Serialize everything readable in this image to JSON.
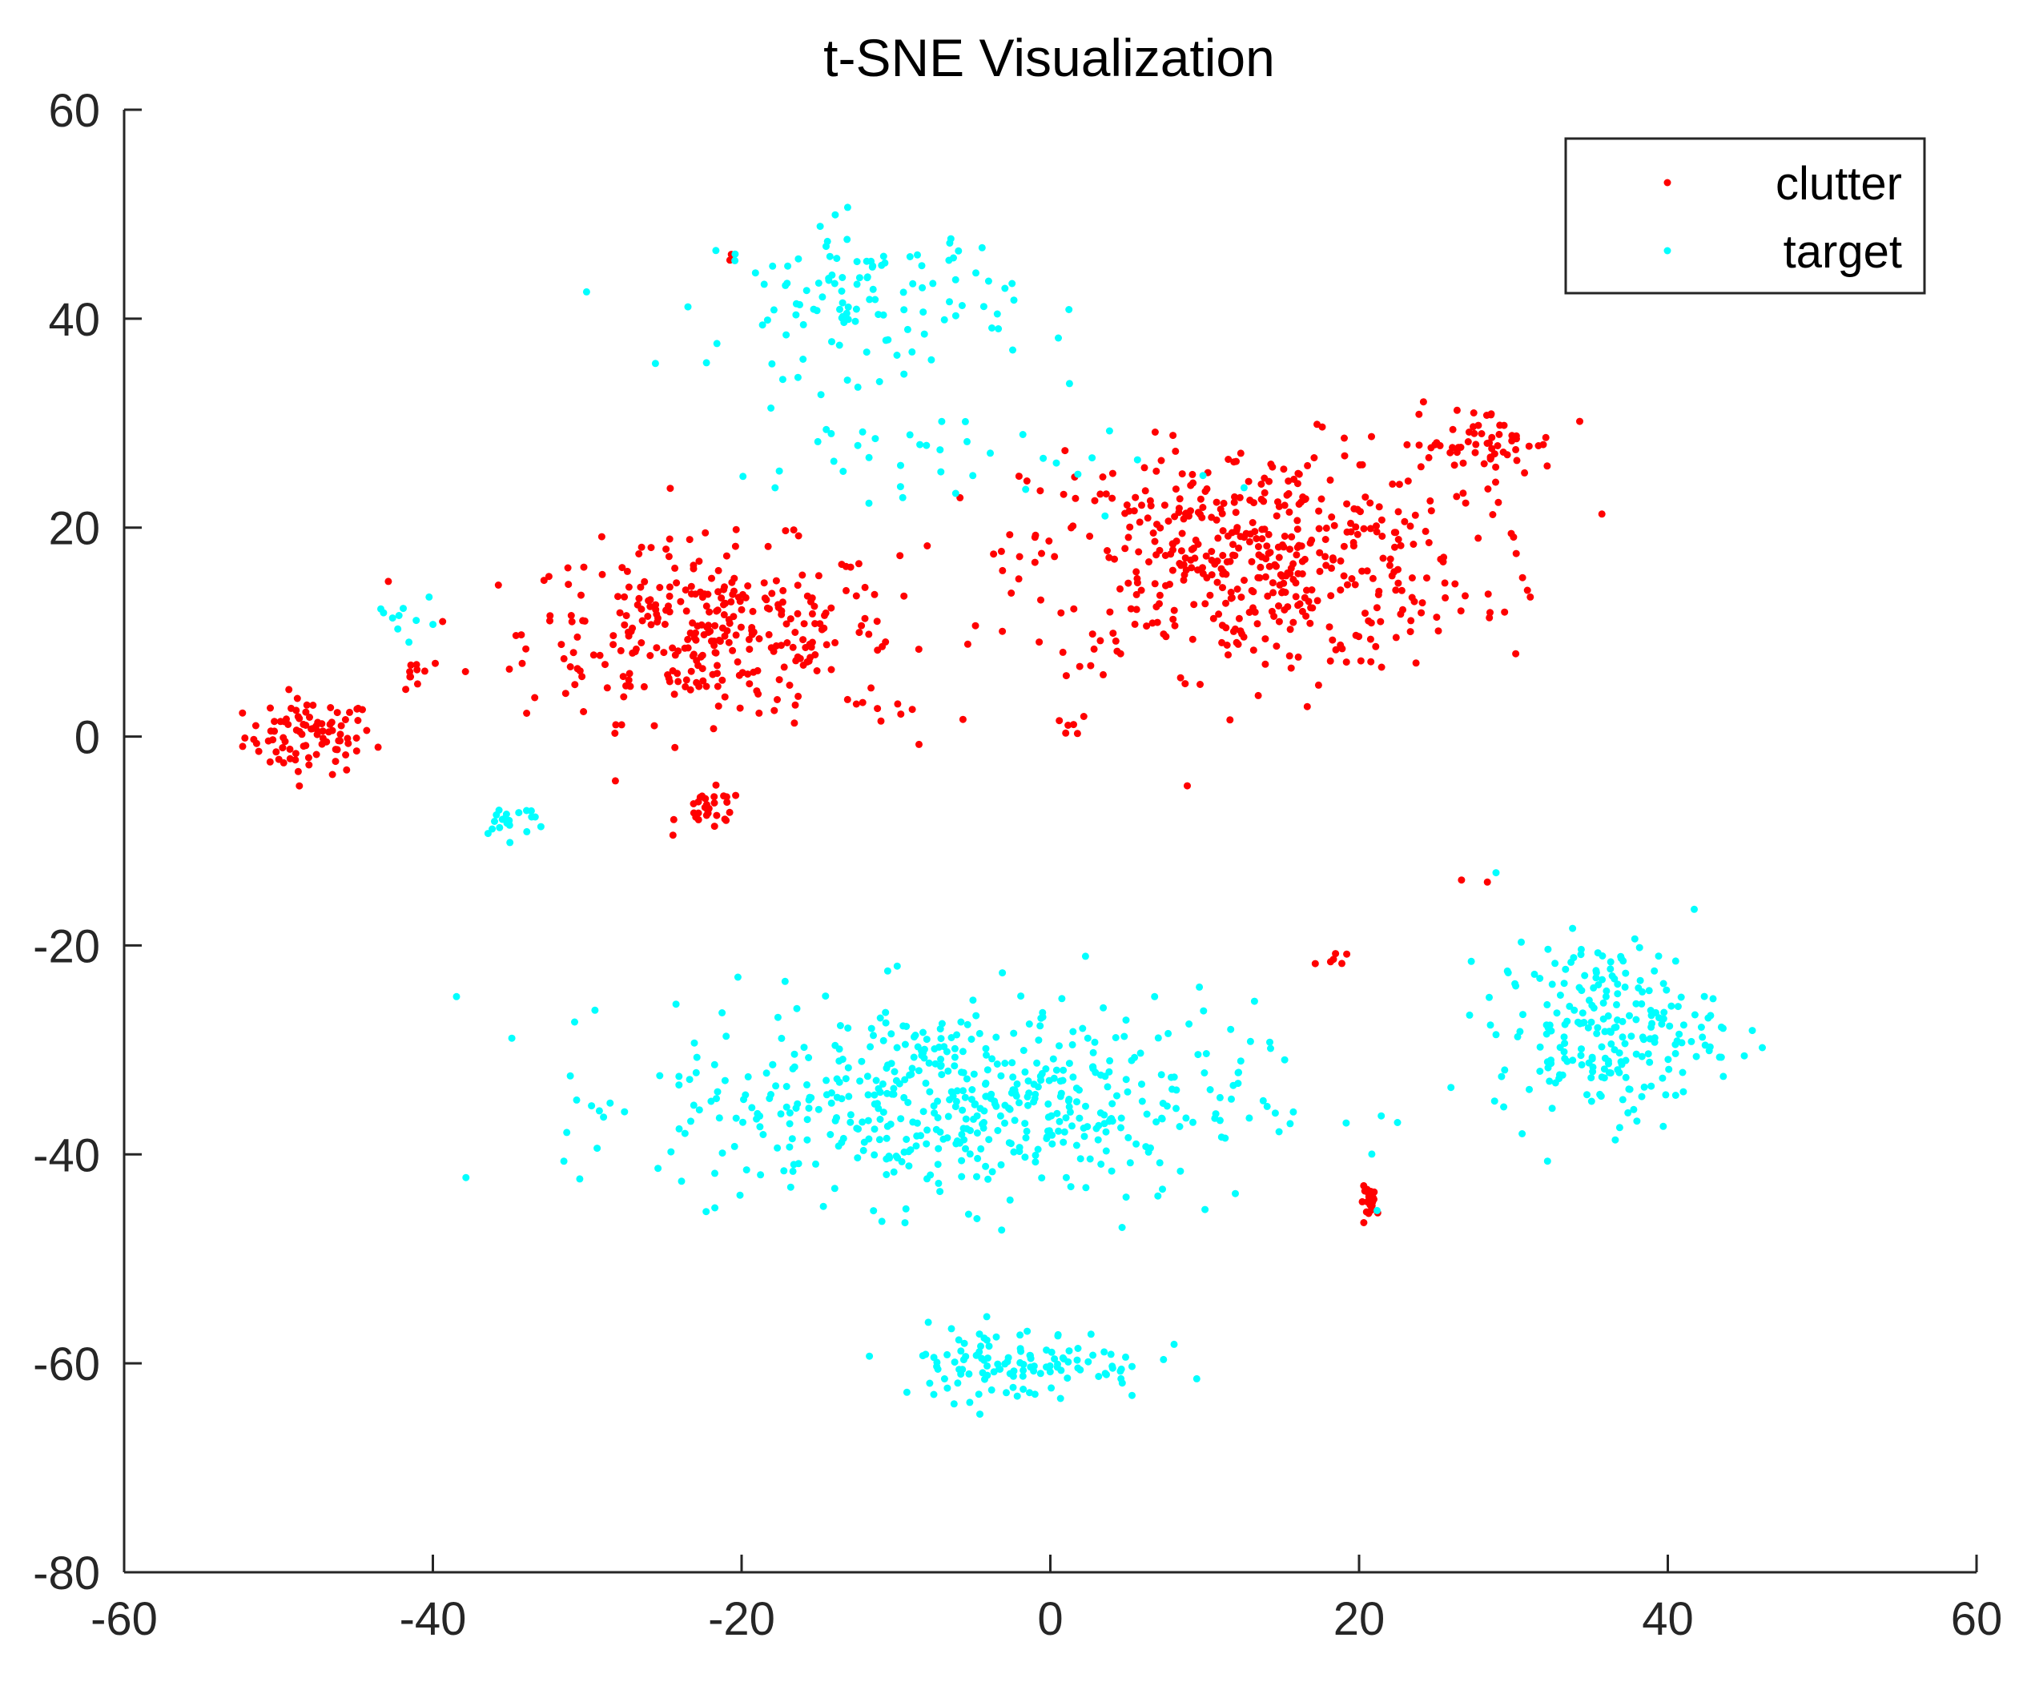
{
  "chart_data": {
    "type": "scatter",
    "title": "t-SNE Visualization",
    "xlabel": "",
    "ylabel": "",
    "xlim": [
      -60,
      60
    ],
    "ylim": [
      -80,
      60
    ],
    "xticks": [
      -60,
      -40,
      -20,
      0,
      20,
      40,
      60
    ],
    "yticks": [
      60,
      40,
      20,
      0,
      -20,
      -40,
      -60,
      -80
    ],
    "xtick_labels": [
      "-60",
      "-40",
      "-20",
      "0",
      "20",
      "40",
      "60"
    ],
    "ytick_labels": [
      "60",
      "40",
      "20",
      "0",
      "-20",
      "-40",
      "-60",
      "-80"
    ],
    "grid": false,
    "legend_position": "top-right",
    "series": [
      {
        "name": "clutter",
        "color": "#ff0000",
        "marker": "dot",
        "clusters": [
          {
            "center": [
              -48,
              0
            ],
            "spread": [
              3.5,
              3
            ],
            "count": 90
          },
          {
            "center": [
              -22,
              10
            ],
            "spread": [
              10,
              7
            ],
            "count": 330
          },
          {
            "center": [
              -22,
              -7
            ],
            "spread": [
              1.8,
              1.6
            ],
            "count": 30
          },
          {
            "center": [
              -41,
              6
            ],
            "spread": [
              0.8,
              2.5
            ],
            "count": 10
          },
          {
            "center": [
              -10,
              2.5
            ],
            "spread": [
              1.5,
              1
            ],
            "count": 6
          },
          {
            "center": [
              1.5,
              1
            ],
            "spread": [
              1,
              0.8
            ],
            "count": 6
          },
          {
            "center": [
              13,
              17
            ],
            "spread": [
              12,
              9
            ],
            "count": 500
          },
          {
            "center": [
              28,
              28
            ],
            "spread": [
              4,
              3
            ],
            "count": 60
          },
          {
            "center": [
              -21,
              46
            ],
            "spread": [
              1,
              1
            ],
            "count": 2
          },
          {
            "center": [
              18.5,
              -21.5
            ],
            "spread": [
              1,
              0.8
            ],
            "count": 6
          },
          {
            "center": [
              20.8,
              -44.5
            ],
            "spread": [
              0.6,
              1.2
            ],
            "count": 22
          },
          {
            "center": [
              31,
              14
            ],
            "spread": [
              0.5,
              1.5
            ],
            "count": 3
          },
          {
            "center": [
              27.5,
              -14
            ],
            "spread": [
              1.5,
              0.3
            ],
            "count": 2
          }
        ]
      },
      {
        "name": "target",
        "color": "#00ffff",
        "marker": "dot",
        "clusters": [
          {
            "center": [
              -12,
              42
            ],
            "spread": [
              8,
              6
            ],
            "count": 120
          },
          {
            "center": [
              -7,
              26
            ],
            "spread": [
              12,
              5
            ],
            "count": 40
          },
          {
            "center": [
              -35,
              -8
            ],
            "spread": [
              2,
              1.5
            ],
            "count": 20
          },
          {
            "center": [
              -42,
              12
            ],
            "spread": [
              2,
              2
            ],
            "count": 10
          },
          {
            "center": [
              -6,
              -35
            ],
            "spread": [
              16,
              8
            ],
            "count": 550
          },
          {
            "center": [
              -2,
              -60
            ],
            "spread": [
              7,
              3
            ],
            "count": 120
          },
          {
            "center": [
              36,
              -28
            ],
            "spread": [
              6,
              7
            ],
            "count": 230
          }
        ]
      }
    ]
  }
}
